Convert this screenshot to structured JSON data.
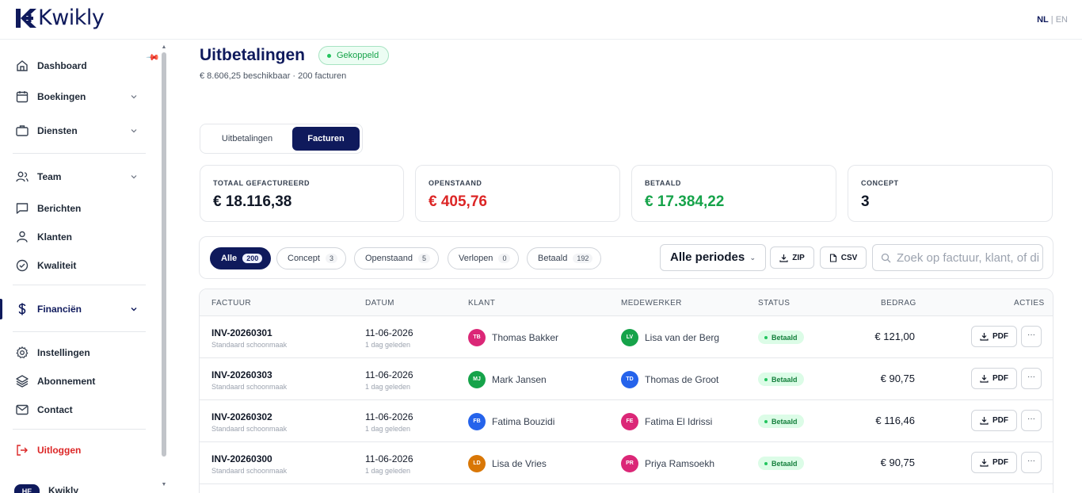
{
  "app": {
    "brand": "Kwikly",
    "lang_active": "NL",
    "lang_separator": "|",
    "lang_other": "EN"
  },
  "sidebar": {
    "items": [
      {
        "label": "Dashboard",
        "icon": "home-icon"
      },
      {
        "label": "Boekingen",
        "icon": "calendar-icon"
      },
      {
        "label": "Diensten",
        "icon": "briefcase-icon"
      },
      {
        "label": "Team",
        "icon": "users-icon"
      },
      {
        "label": "Berichten",
        "icon": "message-icon"
      },
      {
        "label": "Klanten",
        "icon": "user-icon"
      },
      {
        "label": "Kwaliteit",
        "icon": "check-circle-icon"
      },
      {
        "label": "Financiën",
        "icon": "dollar-icon"
      },
      {
        "label": "Instellingen",
        "icon": "gear-icon"
      },
      {
        "label": "Abonnement",
        "icon": "layers-icon"
      },
      {
        "label": "Contact",
        "icon": "mail-icon"
      },
      {
        "label": "Uitloggen",
        "icon": "logout-icon"
      }
    ],
    "user_initials": "HE",
    "user_name": "Kwikly"
  },
  "header": {
    "title": "Uitbetalingen",
    "status": "Gekoppeld",
    "subtitle": "€ 8.606,25 beschikbaar · 200 facturen"
  },
  "tabs": [
    "Uitbetalingen",
    "Facturen"
  ],
  "cards": [
    {
      "label": "TOTAAL GEFACTUREERD",
      "value": "€ 18.116,38",
      "color": "#111827"
    },
    {
      "label": "OPENSTAAND",
      "value": "€ 405,76",
      "color": "#dc2626"
    },
    {
      "label": "BETAALD",
      "value": "€ 17.384,22",
      "color": "#16a34a"
    },
    {
      "label": "CONCEPT",
      "value": "3",
      "color": "#111827"
    }
  ],
  "filters": [
    {
      "label": "Alle",
      "count": "200"
    },
    {
      "label": "Concept",
      "count": "3"
    },
    {
      "label": "Openstaand",
      "count": "5"
    },
    {
      "label": "Verlopen",
      "count": "0"
    },
    {
      "label": "Betaald",
      "count": "192"
    }
  ],
  "period": "Alle periodes",
  "zip_label": "ZIP",
  "csv_label": "CSV",
  "search_placeholder": "Zoek op factuur, klant, of di",
  "table": {
    "headers": [
      "FACTUUR",
      "DATUM",
      "KLANT",
      "MEDEWERKER",
      "STATUS",
      "BEDRAG",
      "ACTIES"
    ],
    "rows": [
      {
        "invoice": "INV-20260301",
        "service": "Standaard schoonmaak",
        "date": "11-06-2026",
        "ago": "1 dag geleden",
        "client_initials": "TB",
        "client": "Thomas Bakker",
        "client_color": "#db2777",
        "emp_initials": "LV",
        "employee": "Lisa van der Berg",
        "emp_color": "#16a34a",
        "status": "Betaald",
        "amount": "€ 121,00",
        "pdf": "PDF",
        "more": "···"
      },
      {
        "invoice": "INV-20260303",
        "service": "Standaard schoonmaak",
        "date": "11-06-2026",
        "ago": "1 dag geleden",
        "client_initials": "MJ",
        "client": "Mark Jansen",
        "client_color": "#16a34a",
        "emp_initials": "TD",
        "employee": "Thomas de Groot",
        "emp_color": "#2563eb",
        "status": "Betaald",
        "amount": "€ 90,75",
        "pdf": "PDF",
        "more": "···"
      },
      {
        "invoice": "INV-20260302",
        "service": "Standaard schoonmaak",
        "date": "11-06-2026",
        "ago": "1 dag geleden",
        "client_initials": "FB",
        "client": "Fatima Bouzidi",
        "client_color": "#2563eb",
        "emp_initials": "FE",
        "employee": "Fatima El Idrissi",
        "emp_color": "#db2777",
        "status": "Betaald",
        "amount": "€ 116,46",
        "pdf": "PDF",
        "more": "···"
      },
      {
        "invoice": "INV-20260300",
        "service": "Standaard schoonmaak",
        "date": "11-06-2026",
        "ago": "1 dag geleden",
        "client_initials": "LD",
        "client": "Lisa de Vries",
        "client_color": "#d97706",
        "emp_initials": "PR",
        "employee": "Priya Ramsoekh",
        "emp_color": "#db2777",
        "status": "Betaald",
        "amount": "€ 90,75",
        "pdf": "PDF",
        "more": "···"
      }
    ]
  }
}
